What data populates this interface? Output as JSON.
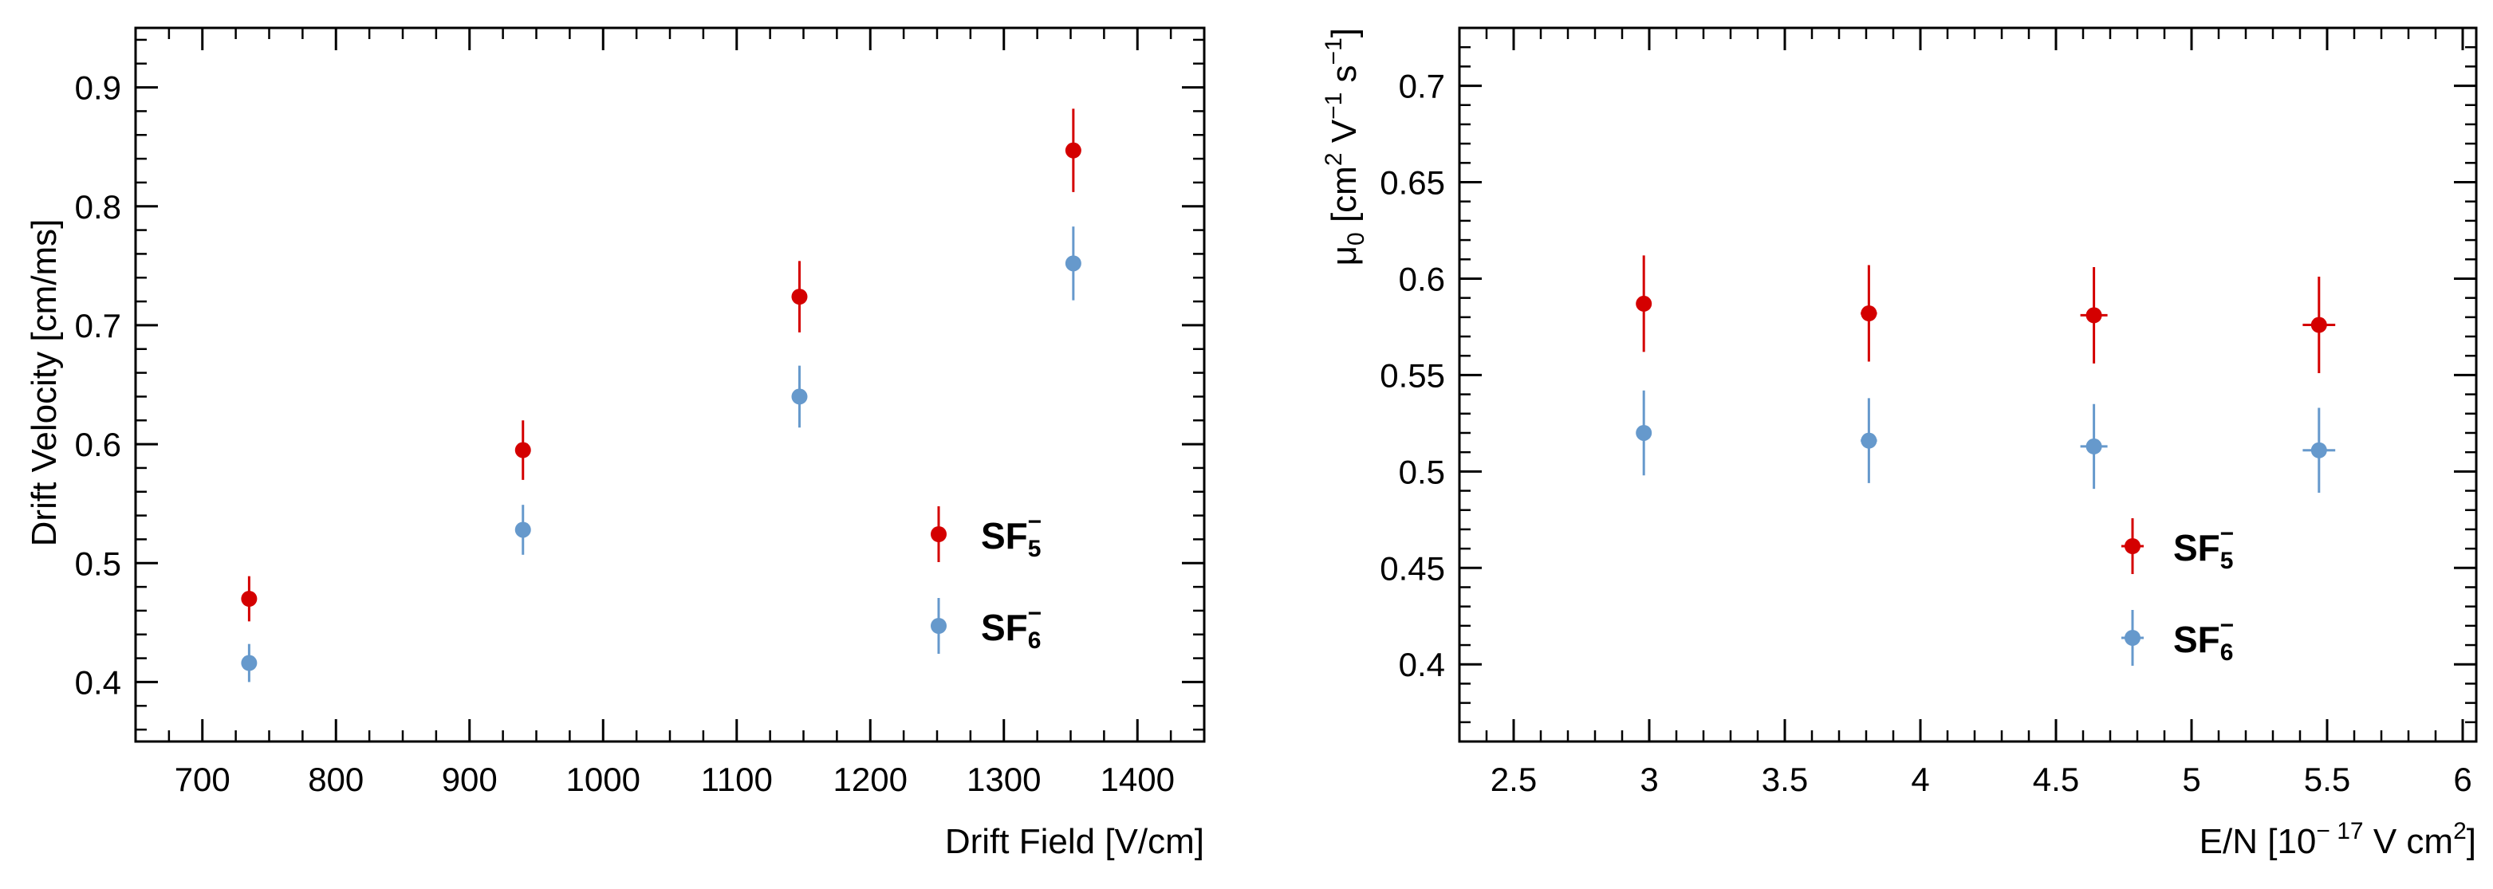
{
  "chart_data": [
    {
      "type": "scatter",
      "title": "",
      "xlabel": "Drift Field [V/cm]",
      "ylabel": "Drift Velocity [cm/ms]",
      "xlim": [
        650,
        1450
      ],
      "ylim": [
        0.35,
        0.95
      ],
      "xticks": [
        "700",
        "800",
        "900",
        "1000",
        "1100",
        "1200",
        "1300",
        "1400"
      ],
      "yticks": [
        "0.4",
        "0.5",
        "0.6",
        "0.7",
        "0.8",
        "0.9"
      ],
      "legend": "right",
      "series": [
        {
          "name": "SF5-",
          "label_main": "SF",
          "label_sub": "5",
          "label_sup": "−",
          "color": "#d40000",
          "points": [
            {
              "x": 735,
              "y": 0.47,
              "yerr": 0.019
            },
            {
              "x": 940,
              "y": 0.595,
              "yerr": 0.025
            },
            {
              "x": 1147,
              "y": 0.724,
              "yerr": 0.03
            },
            {
              "x": 1352,
              "y": 0.847,
              "yerr": 0.035
            }
          ]
        },
        {
          "name": "SF6-",
          "label_main": "SF",
          "label_sub": "6",
          "label_sup": "−",
          "color": "#6699cc",
          "points": [
            {
              "x": 735,
              "y": 0.416,
              "yerr": 0.016
            },
            {
              "x": 940,
              "y": 0.528,
              "yerr": 0.021
            },
            {
              "x": 1147,
              "y": 0.64,
              "yerr": 0.026
            },
            {
              "x": 1352,
              "y": 0.752,
              "yerr": 0.031
            }
          ]
        }
      ]
    },
    {
      "type": "scatter",
      "title": "",
      "xlabel": "E/N [10",
      "xlabel_sup": "− 17",
      "xlabel_mid": " V cm",
      "xlabel_sup2": "2",
      "xlabel_end": "]",
      "ylabel": "μ",
      "ylabel_sub": "0",
      "ylabel_mid": " [cm",
      "ylabel_sup": "2",
      "ylabel_mid2": " V",
      "ylabel_sup2": "−1",
      "ylabel_mid3": " s",
      "ylabel_sup3": "−1",
      "ylabel_end": "]",
      "xlim": [
        2.3,
        6.05
      ],
      "ylim": [
        0.36,
        0.73
      ],
      "xticks": [
        "2.5",
        "3",
        "3.5",
        "4",
        "4.5",
        "5",
        "5.5",
        "6"
      ],
      "yticks": [
        "0.4",
        "0.45",
        "0.5",
        "0.55",
        "0.6",
        "0.65",
        "0.7"
      ],
      "legend": "center",
      "series": [
        {
          "name": "SF5-",
          "label_main": "SF",
          "label_sub": "5",
          "label_sup": "−",
          "color": "#d40000",
          "points": [
            {
              "x": 2.98,
              "y": 0.587,
              "yerr": 0.025,
              "xerr": 0.02
            },
            {
              "x": 3.81,
              "y": 0.582,
              "yerr": 0.025,
              "xerr": 0.03
            },
            {
              "x": 4.64,
              "y": 0.581,
              "yerr": 0.025,
              "xerr": 0.05
            },
            {
              "x": 5.47,
              "y": 0.576,
              "yerr": 0.025,
              "xerr": 0.06
            }
          ]
        },
        {
          "name": "SF6-",
          "label_main": "SF",
          "label_sub": "6",
          "label_sup": "−",
          "color": "#6699cc",
          "points": [
            {
              "x": 2.98,
              "y": 0.52,
              "yerr": 0.022,
              "xerr": 0.02
            },
            {
              "x": 3.81,
              "y": 0.516,
              "yerr": 0.022,
              "xerr": 0.03
            },
            {
              "x": 4.64,
              "y": 0.513,
              "yerr": 0.022,
              "xerr": 0.05
            },
            {
              "x": 5.47,
              "y": 0.511,
              "yerr": 0.022,
              "xerr": 0.06
            }
          ]
        }
      ]
    }
  ]
}
